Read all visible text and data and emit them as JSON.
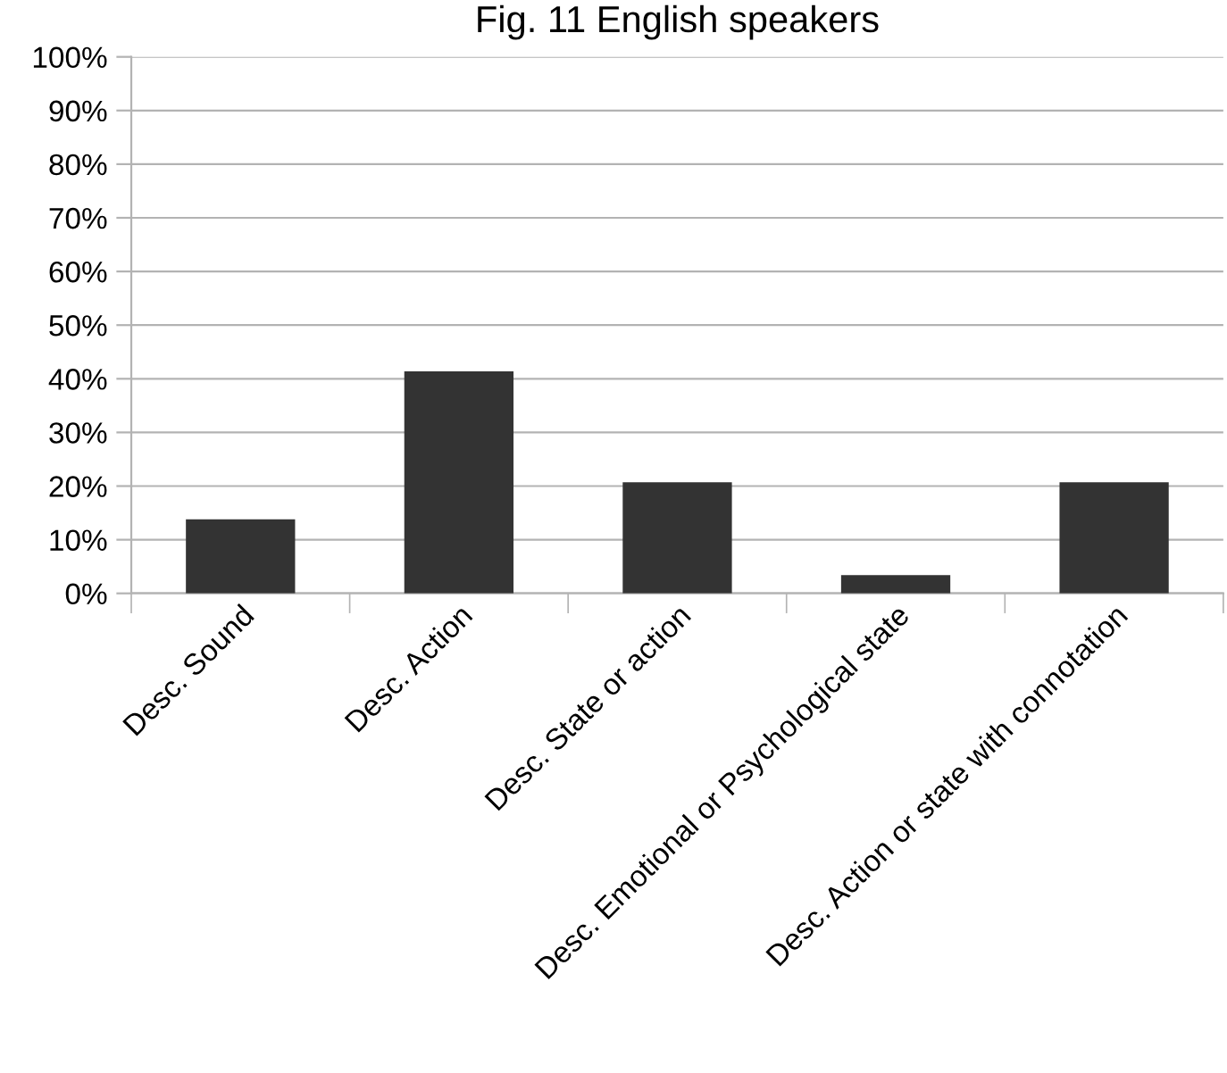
{
  "chart_data": {
    "type": "bar",
    "title": "Fig. 11 English speakers",
    "categories": [
      "Desc. Sound",
      "Desc. Action",
      "Desc. State or action",
      "Desc. Emotional or Psychological state",
      "Desc. Action or state with connotation"
    ],
    "values": [
      13.8,
      41.4,
      20.7,
      3.4,
      20.7
    ],
    "color": "#333333",
    "ylim": [
      0,
      100
    ],
    "yticks": [
      {
        "value": 0,
        "label": "0%"
      },
      {
        "value": 10,
        "label": "10%"
      },
      {
        "value": 20,
        "label": "20%"
      },
      {
        "value": 30,
        "label": "30%"
      },
      {
        "value": 40,
        "label": "40%"
      },
      {
        "value": 50,
        "label": "50%"
      },
      {
        "value": 60,
        "label": "60%"
      },
      {
        "value": 70,
        "label": "70%"
      },
      {
        "value": 80,
        "label": "80%"
      },
      {
        "value": 90,
        "label": "90%"
      },
      {
        "value": 100,
        "label": "100%"
      }
    ],
    "grid": "y",
    "legend": false
  }
}
